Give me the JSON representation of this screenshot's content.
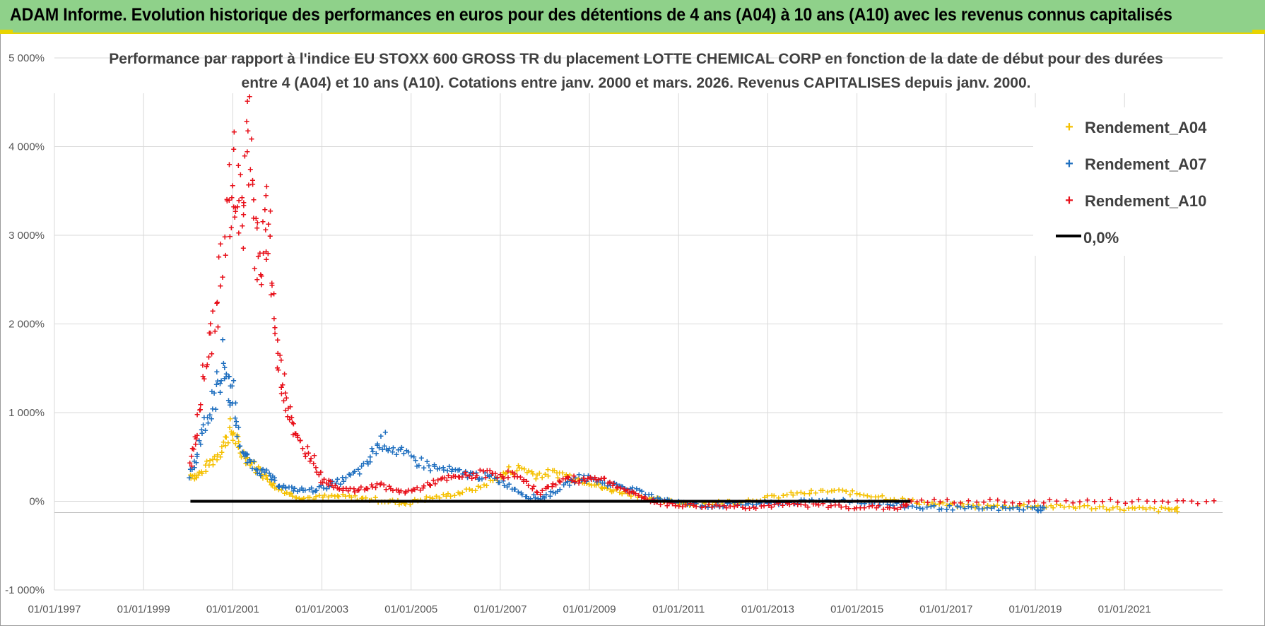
{
  "banner": {
    "title": "ADAM Informe. Evolution historique des performances en euros pour des détentions de 4 ans (A04) à 10 ans (A10) avec les revenus connus capitalisés"
  },
  "colors": {
    "banner_bg": "#8fd18a",
    "banner_accent": "#e8d400",
    "a04": "#f5c000",
    "a07": "#1f6fbf",
    "a10": "#e8101a",
    "zero": "#000000"
  },
  "chart_data": {
    "type": "scatter",
    "title_line1": "Performance par rapport à l'indice EU STOXX 600 GROSS TR  du placement LOTTE CHEMICAL CORP en fonction de la date de début pour des durées",
    "title_line2": "entre 4 (A04) et 10 ans (A10). Cotations entre janv. 2000 et mars. 2026. Revenus CAPITALISES depuis janv. 2000.",
    "xlabel": "",
    "ylabel": "",
    "x_range": [
      1997.0,
      2023.0
    ],
    "ylim": [
      -1000,
      5000
    ],
    "yticks": [
      -1000,
      0,
      1000,
      2000,
      3000,
      4000,
      5000
    ],
    "ytick_labels": [
      "-1 000%",
      "0%",
      "1 000%",
      "2 000%",
      "3 000%",
      "4 000%",
      "5 000%"
    ],
    "xticks": [
      1997,
      1999,
      2001,
      2003,
      2005,
      2007,
      2009,
      2011,
      2013,
      2015,
      2017,
      2019,
      2021
    ],
    "xtick_labels": [
      "01/01/1997",
      "01/01/1999",
      "01/01/2001",
      "01/01/2003",
      "01/01/2005",
      "01/01/2007",
      "01/01/2009",
      "01/01/2011",
      "01/01/2013",
      "01/01/2015",
      "01/01/2017",
      "01/01/2019",
      "01/01/2021"
    ],
    "grid": true,
    "legend_position": "top-right",
    "series": [
      {
        "name": "Rendement_A04",
        "marker": "+",
        "x": [
          2000.05,
          2000.2,
          2000.4,
          2000.6,
          2000.8,
          2000.95,
          2001.05,
          2001.2,
          2001.4,
          2001.6,
          2001.8,
          2002.0,
          2002.3,
          2002.6,
          2003.0,
          2003.4,
          2003.8,
          2004.2,
          2004.6,
          2004.9,
          2005.3,
          2005.7,
          2006.1,
          2006.5,
          2006.9,
          2007.2,
          2007.5,
          2007.8,
          2008.1,
          2008.4,
          2008.7,
          2009.0,
          2009.3,
          2009.6,
          2010.0,
          2010.5,
          2011.0,
          2011.5,
          2012.0,
          2012.5,
          2013.0,
          2013.5,
          2014.0,
          2014.5,
          2015.0,
          2015.5,
          2016.0,
          2016.5,
          2017.0,
          2017.5,
          2018.0,
          2018.5,
          2019.0,
          2019.5,
          2020.0,
          2020.5,
          2021.0,
          2021.5,
          2022.0,
          2022.2
        ],
        "values": [
          300,
          280,
          380,
          500,
          650,
          820,
          700,
          550,
          450,
          350,
          250,
          150,
          80,
          40,
          50,
          60,
          40,
          20,
          0,
          -20,
          30,
          60,
          100,
          150,
          250,
          350,
          380,
          300,
          320,
          310,
          260,
          220,
          150,
          120,
          80,
          20,
          -20,
          -30,
          -10,
          10,
          40,
          80,
          100,
          120,
          90,
          60,
          20,
          -20,
          -40,
          -50,
          -60,
          -50,
          -50,
          -60,
          -60,
          -70,
          -80,
          -90,
          -90,
          -90
        ]
      },
      {
        "name": "Rendement_A07",
        "marker": "+",
        "x": [
          2000.05,
          2000.2,
          2000.35,
          2000.5,
          2000.65,
          2000.8,
          2000.9,
          2001.0,
          2001.1,
          2001.25,
          2001.4,
          2001.6,
          2001.8,
          2002.0,
          2002.2,
          2002.5,
          2002.8,
          2003.1,
          2003.4,
          2003.7,
          2004.0,
          2004.2,
          2004.4,
          2004.6,
          2004.9,
          2005.2,
          2005.5,
          2005.8,
          2006.1,
          2006.4,
          2006.7,
          2007.0,
          2007.3,
          2007.6,
          2007.9,
          2008.2,
          2008.5,
          2008.8,
          2009.1,
          2009.4,
          2009.7,
          2010.0,
          2010.4,
          2010.8,
          2011.2,
          2011.6,
          2012.0,
          2012.5,
          2013.0,
          2013.5,
          2014.0,
          2014.5,
          2015.0,
          2015.5,
          2016.0,
          2016.5,
          2017.0,
          2017.5,
          2018.0,
          2018.5,
          2019.0,
          2019.2
        ],
        "values": [
          300,
          500,
          900,
          1000,
          1300,
          1600,
          1300,
          1200,
          800,
          500,
          450,
          350,
          300,
          200,
          150,
          130,
          130,
          170,
          230,
          300,
          400,
          600,
          700,
          600,
          500,
          450,
          380,
          350,
          320,
          300,
          280,
          230,
          150,
          60,
          40,
          100,
          200,
          280,
          250,
          200,
          180,
          130,
          60,
          20,
          -30,
          -50,
          -40,
          -30,
          -20,
          -10,
          0,
          20,
          0,
          -20,
          -50,
          -70,
          -70,
          -80,
          -80,
          -80,
          -80,
          -80
        ]
      },
      {
        "name": "Rendement_A10",
        "marker": "+",
        "x": [
          2000.05,
          2000.15,
          2000.3,
          2000.45,
          2000.6,
          2000.75,
          2000.9,
          2001.0,
          2001.1,
          2001.2,
          2001.3,
          2001.4,
          2001.5,
          2001.6,
          2001.7,
          2001.8,
          2001.9,
          2002.0,
          2002.1,
          2002.2,
          2002.3,
          2002.4,
          2002.6,
          2002.8,
          2003.0,
          2003.2,
          2003.4,
          2003.7,
          2004.0,
          2004.3,
          2004.6,
          2004.9,
          2005.2,
          2005.5,
          2005.8,
          2006.1,
          2006.4,
          2006.7,
          2007.0,
          2007.3,
          2007.6,
          2007.9,
          2008.2,
          2008.5,
          2008.8,
          2009.1,
          2009.4,
          2009.7,
          2010.0,
          2010.3,
          2010.6,
          2011.0,
          2011.5,
          2012.0,
          2012.5,
          2013.0,
          2013.5,
          2014.0,
          2014.5,
          2015.0,
          2015.5,
          2016.0,
          2016.2,
          2017.0,
          2018.0,
          2019.0,
          2020.0,
          2021.0,
          2022.0,
          2023.0
        ],
        "values": [
          400,
          700,
          1200,
          1700,
          2000,
          2600,
          3300,
          3700,
          3600,
          3100,
          3800,
          4400,
          3000,
          2600,
          2900,
          3300,
          2400,
          1600,
          1400,
          1200,
          1000,
          700,
          600,
          500,
          250,
          200,
          150,
          120,
          150,
          200,
          120,
          110,
          150,
          220,
          250,
          280,
          300,
          320,
          310,
          300,
          200,
          100,
          200,
          260,
          240,
          280,
          230,
          150,
          80,
          30,
          -20,
          -40,
          -50,
          -50,
          -60,
          -50,
          -40,
          -40,
          -50,
          -60,
          -70,
          -70,
          0,
          0,
          0,
          0,
          0,
          0,
          0,
          0
        ]
      },
      {
        "name": "0,0%",
        "marker": "line",
        "x": [
          2000.05,
          2016.2
        ],
        "values": [
          0,
          0
        ]
      }
    ]
  }
}
